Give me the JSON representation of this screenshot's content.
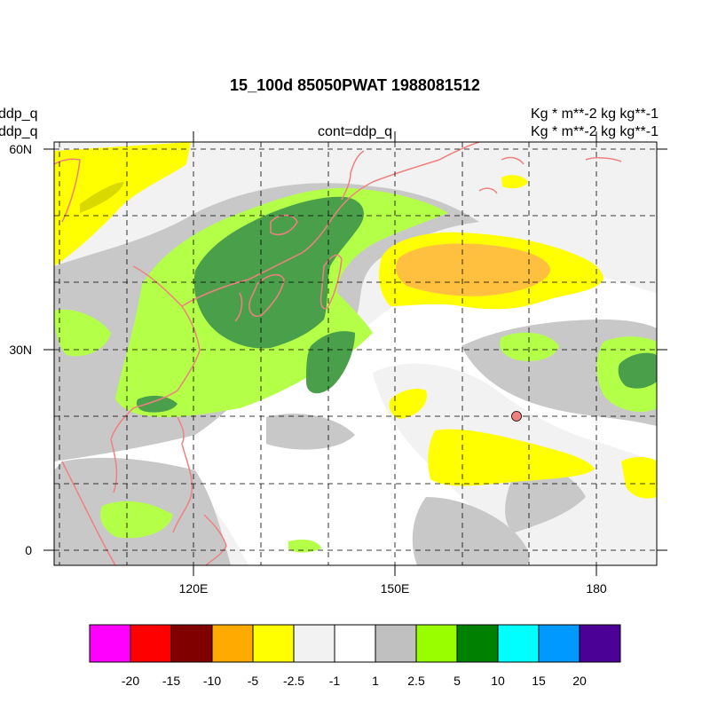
{
  "title": "15_100d 85050PWAT  1988081512",
  "left_labels": [
    "ddp_q",
    "ddp_q"
  ],
  "center_label": "cont=ddp_q",
  "right_labels": [
    "Kg  * m**-2 kg kg**-1",
    "Kg  * m**-2 kg kg**-1"
  ],
  "lat_ticks": [
    {
      "value": 60,
      "label": "60N"
    },
    {
      "value": 30,
      "label": "30N"
    },
    {
      "value": 0,
      "label": "0"
    }
  ],
  "lon_ticks": [
    {
      "value": 120,
      "label": "120E"
    },
    {
      "value": 150,
      "label": "150E"
    },
    {
      "value": 180,
      "label": "180"
    }
  ],
  "map_extent": {
    "lon": [
      100,
      187
    ],
    "lat": [
      -2,
      61
    ]
  },
  "grid": {
    "style": "dashed",
    "lon_step": 10,
    "lat_step": 10
  },
  "colorbar": {
    "colors": [
      "#ff00ff",
      "#ff0000",
      "#800000",
      "#ffaa00",
      "#ffff00",
      "#f2f2f2",
      "#ffffff",
      "#c0c0c0",
      "#99ff00",
      "#008000",
      "#00ffff",
      "#0099ff",
      "#4b0096"
    ],
    "labels": [
      "-20",
      "-15",
      "-10",
      "-5",
      "-2.5",
      "-1",
      "1",
      "2.5",
      "5",
      "10",
      "15",
      "20"
    ]
  },
  "marker": {
    "lon": 167,
    "lat": 20,
    "color": "#f08080"
  },
  "coast_color": "#f08080"
}
